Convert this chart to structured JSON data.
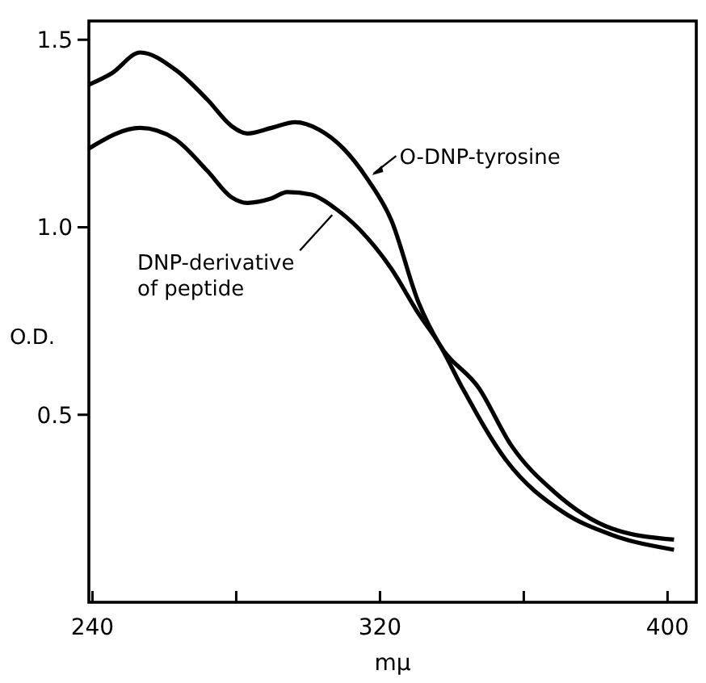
{
  "chart_data": {
    "type": "line",
    "xlabel": "mμ",
    "ylabel": "O.D.",
    "xlim": [
      239,
      408
    ],
    "xticks": [
      240,
      {
        "value": 280,
        "label": null
      },
      320,
      {
        "value": 360,
        "label": null
      },
      400
    ],
    "ylim": [
      0,
      1.55
    ],
    "yticks": [
      {
        "value": 0.5,
        "label": "0.5"
      },
      {
        "value": 1.0,
        "label": "1.0"
      },
      1.5
    ],
    "grid": false,
    "marker": "none",
    "line_style": "solid",
    "series": [
      {
        "name": "O-DNP-tyrosine",
        "color": "#000000",
        "x": [
          239,
          245.3,
          253.3,
          263.1,
          272,
          278.7,
          283.1,
          289.8,
          296.4,
          303.1,
          309.8,
          316.4,
          323.1,
          330.7,
          336.4,
          347.6,
          356.4,
          368.4,
          384.4,
          401.8
        ],
        "values": [
          1.38,
          1.41,
          1.466,
          1.42,
          1.34,
          1.27,
          1.25,
          1.265,
          1.28,
          1.26,
          1.21,
          1.13,
          1.02,
          0.8,
          0.69,
          0.57,
          0.42,
          0.295,
          0.197,
          0.167
        ]
      },
      {
        "name": "DNP-derivative of peptide",
        "color": "#000000",
        "x": [
          239,
          253.3,
          263,
          272,
          278.7,
          283.1,
          289.8,
          294.2,
          300.9,
          307.6,
          314.2,
          323.1,
          330.7,
          336.4,
          343,
          355,
          371,
          384.4,
          401.8
        ],
        "values": [
          1.21,
          1.265,
          1.235,
          1.15,
          1.08,
          1.065,
          1.077,
          1.094,
          1.087,
          1.05,
          0.995,
          0.89,
          0.77,
          0.69,
          0.57,
          0.38,
          0.24,
          0.18,
          0.14
        ]
      }
    ]
  }
}
